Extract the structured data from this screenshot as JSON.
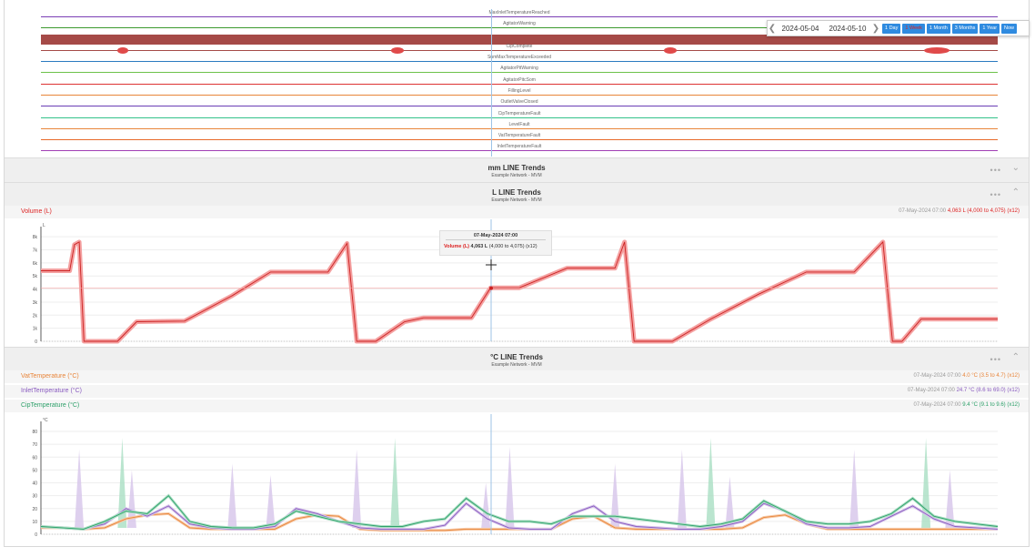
{
  "events": {
    "labels": [
      "MaxInletTemperatureReached",
      "AgitatorWarning",
      "",
      "CipComplete",
      "SumMaxTemperatureExceeded",
      "AgitatorPitWarning",
      "AgitatorPitcSom",
      "FillingLevel",
      "OutletValveClosed",
      "CipTemperatureFault",
      "LevelFault",
      "VatTemperatureFault",
      "InletTemperatureFault"
    ],
    "colors": [
      "#7b3fb5",
      "#3c9a2e",
      "#a54a47",
      "#a54a47",
      "#2a7ac0",
      "#6cc24a",
      "#d33",
      "#e8853a",
      "#6a3db5",
      "#33c28a",
      "#e8853a",
      "#e86a2a",
      "#a23fb5"
    ]
  },
  "date_bar": {
    "from": "2024-05-04",
    "to": "2024-05-10",
    "ranges": [
      "1 Day",
      "1 Week",
      "1 Month",
      "3 Months",
      "1 Year",
      "Now"
    ],
    "active": 1
  },
  "panels": {
    "mm": {
      "title": "mm LINE Trends",
      "subtitle": "Example Network - MVM"
    },
    "L": {
      "title": "L LINE Trends",
      "subtitle": "Example Network - MVM"
    },
    "C": {
      "title": "°C LINE Trends",
      "subtitle": "Example Network - MVM"
    }
  },
  "volume_legend": {
    "name": "Volume (L)",
    "time": "07-May-2024 07:00",
    "value": "4,063 L (4,000 to 4,075) (x12)",
    "color": "#d22"
  },
  "temp_legend": [
    {
      "name": "VatTemperature (°C)",
      "time": "07-May-2024 07:00",
      "value": "4.0 °C (3.5 to 4.7) (x12)",
      "color": "#e8853a"
    },
    {
      "name": "InletTemperature (°C)",
      "time": "07-May-2024 07:00",
      "value": "24.7 °C (8.6 to 69.0) (x12)",
      "color": "#8a5cc0"
    },
    {
      "name": "CipTemperature (°C)",
      "time": "07-May-2024 07:00",
      "value": "9.4 °C (9.1 to 9.6) (x12)",
      "color": "#2ea06a"
    }
  ],
  "tooltip": {
    "title": "07-May-2024 07:00",
    "series": "Volume (L)",
    "value": "4,063 L",
    "range": "(4,000 to 4,075) (x12)"
  },
  "chart_data": [
    {
      "type": "line",
      "title": "L LINE Trends",
      "ylabel": "L",
      "yticks": [
        "0",
        "1k",
        "2k",
        "3k",
        "4k",
        "5k",
        "6k",
        "7k",
        "8k"
      ],
      "ylim": [
        0,
        8500
      ],
      "series": [
        {
          "name": "Volume (L)",
          "x": [
            0,
            0.03,
            0.035,
            0.04,
            0.045,
            0.06,
            0.08,
            0.1,
            0.15,
            0.2,
            0.24,
            0.3,
            0.32,
            0.33,
            0.34,
            0.35,
            0.38,
            0.4,
            0.45,
            0.47,
            0.5,
            0.55,
            0.6,
            0.61,
            0.62,
            0.63,
            0.64,
            0.66,
            0.7,
            0.75,
            0.8,
            0.85,
            0.88,
            0.89,
            0.9,
            0.92,
            0.95,
            0.97,
            1.0
          ],
          "values": [
            5400,
            5400,
            7400,
            7600,
            0,
            0,
            0,
            1500,
            1550,
            3500,
            5300,
            5300,
            7500,
            0,
            0,
            0,
            1500,
            1800,
            1800,
            4100,
            4100,
            5600,
            5600,
            7600,
            0,
            0,
            0,
            0,
            1700,
            3600,
            5300,
            5300,
            7600,
            0,
            0,
            1700,
            1700,
            1700,
            1700
          ]
        }
      ]
    },
    {
      "type": "line",
      "title": "°C LINE Trends",
      "ylabel": "°C",
      "yticks": [
        "0",
        "10",
        "20",
        "30",
        "40",
        "50",
        "60",
        "70",
        "80"
      ],
      "ylim": [
        0,
        85
      ],
      "series": [
        {
          "name": "VatTemperature (°C)",
          "values": [
            5,
            5,
            4,
            5,
            12,
            15,
            16,
            5,
            4,
            4,
            4,
            4,
            12,
            15,
            14,
            4,
            3,
            3,
            3,
            3,
            4,
            4,
            4,
            4,
            4,
            12,
            14,
            5,
            4,
            4,
            4,
            4,
            4,
            5,
            13,
            15,
            8,
            4,
            4,
            4,
            4,
            4,
            4,
            4,
            4,
            4
          ]
        },
        {
          "name": "InletTemperature (°C)",
          "values": [
            6,
            5,
            4,
            8,
            20,
            14,
            22,
            8,
            5,
            4,
            4,
            6,
            20,
            16,
            10,
            5,
            4,
            4,
            4,
            7,
            24,
            12,
            5,
            4,
            4,
            16,
            22,
            10,
            6,
            5,
            4,
            4,
            6,
            10,
            24,
            18,
            8,
            5,
            5,
            6,
            14,
            22,
            12,
            6,
            5,
            4
          ]
        },
        {
          "name": "CipTemperature (°C)",
          "values": [
            6,
            5,
            4,
            10,
            18,
            16,
            30,
            10,
            6,
            5,
            5,
            8,
            18,
            14,
            10,
            8,
            6,
            6,
            10,
            12,
            28,
            16,
            10,
            10,
            8,
            14,
            14,
            14,
            12,
            10,
            8,
            6,
            8,
            12,
            26,
            18,
            10,
            8,
            8,
            10,
            16,
            28,
            14,
            10,
            8,
            6
          ]
        }
      ]
    }
  ]
}
